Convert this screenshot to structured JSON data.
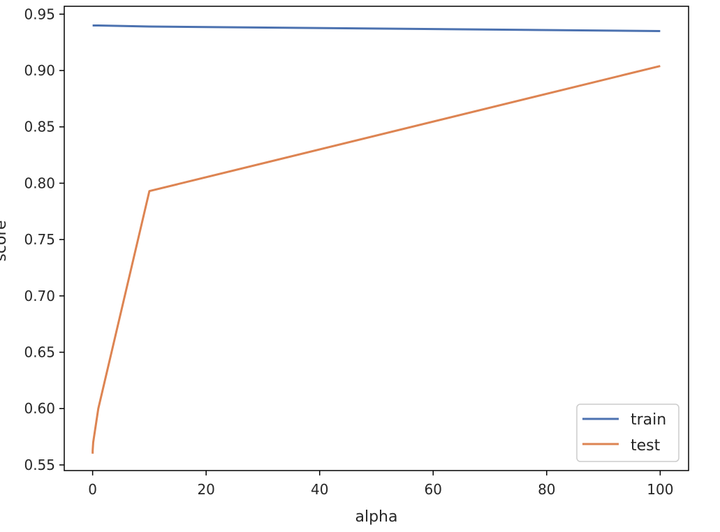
{
  "chart_data": {
    "type": "line",
    "xlabel": "alpha",
    "ylabel": "score",
    "xlim": [
      -5,
      105
    ],
    "ylim": [
      0.545,
      0.957
    ],
    "xticks": [
      0,
      20,
      40,
      60,
      80,
      100
    ],
    "yticks": [
      0.55,
      0.6,
      0.65,
      0.7,
      0.75,
      0.8,
      0.85,
      0.9,
      0.95
    ],
    "x": [
      0.001,
      0.01,
      0.1,
      1,
      10,
      100
    ],
    "series": [
      {
        "name": "train",
        "color": "#4c72b0",
        "values": [
          0.94,
          0.94,
          0.94,
          0.94,
          0.939,
          0.935
        ]
      },
      {
        "name": "test",
        "color": "#dd8452",
        "values": [
          0.56,
          0.563,
          0.57,
          0.6,
          0.793,
          0.904
        ]
      }
    ],
    "legend": "lower-right",
    "grid": false
  }
}
